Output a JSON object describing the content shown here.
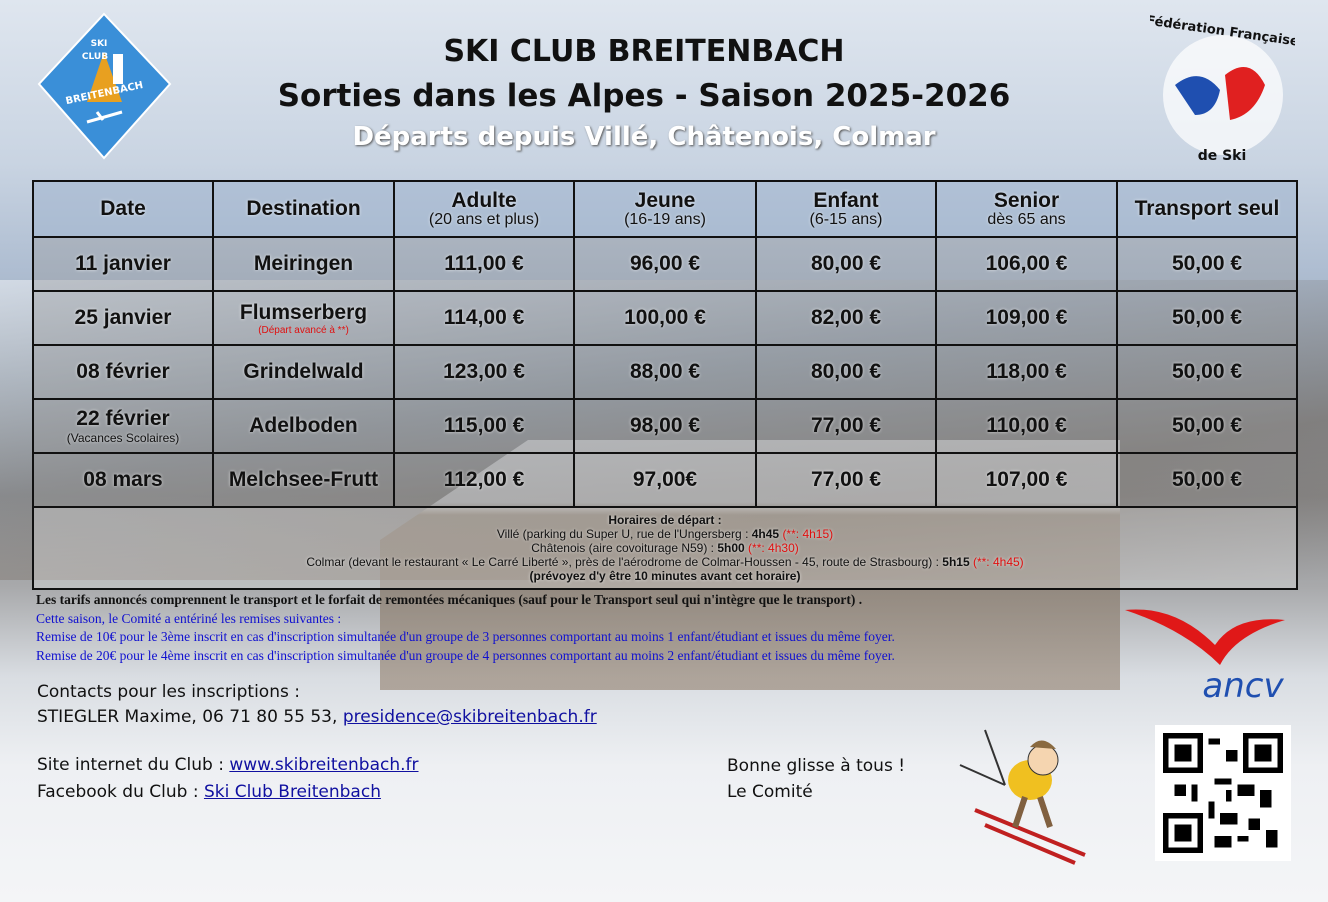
{
  "header": {
    "title": "SKI CLUB BREITENBACH",
    "subtitle": "Sorties dans les Alpes - Saison 2025-2026",
    "departures": "Départs depuis Villé, Châtenois, Colmar"
  },
  "logos": {
    "club": "SKI CLUB BREITENBACH",
    "ffs_top": "Fédération Française",
    "ffs_bottom": "de Ski",
    "ancv": "ancv"
  },
  "table": {
    "headers": [
      {
        "label": "Date"
      },
      {
        "label": "Destination"
      },
      {
        "label": "Adulte",
        "sub": "(20 ans et plus)"
      },
      {
        "label": "Jeune",
        "sub": "(16-19 ans)"
      },
      {
        "label": "Enfant",
        "sub": "(6-15 ans)"
      },
      {
        "label": "Senior",
        "sub": "dès 65 ans"
      },
      {
        "label": "Transport seul"
      }
    ],
    "rows": [
      {
        "date": "11 janvier",
        "destination": "Meiringen",
        "adulte": "111,00 €",
        "jeune": "96,00 €",
        "enfant": "80,00 €",
        "senior": "106,00 €",
        "transport": "50,00 €"
      },
      {
        "date": "25 janvier",
        "destination": "Flumserberg",
        "dest_note": "(Départ avancé à **)",
        "adulte": "114,00 €",
        "jeune": "100,00 €",
        "enfant": "82,00 €",
        "senior": "109,00 €",
        "transport": "50,00 €"
      },
      {
        "date": "08 février",
        "destination": "Grindelwald",
        "adulte": "123,00 €",
        "jeune": "88,00 €",
        "enfant": "80,00 €",
        "senior": "118,00 €",
        "transport": "50,00 €"
      },
      {
        "date": "22 février",
        "date_note": "(Vacances Scolaires)",
        "destination": "Adelboden",
        "adulte": "115,00 €",
        "jeune": "98,00 €",
        "enfant": "77,00 €",
        "senior": "110,00 €",
        "transport": "50,00 €"
      },
      {
        "date": "08 mars",
        "destination": "Melchsee-Frutt",
        "adulte": "112,00 €",
        "jeune": "97,00€",
        "enfant": "77,00 €",
        "senior": "107,00 €",
        "transport": "50,00 €"
      }
    ],
    "schedule": {
      "title": "Horaires de départ :",
      "ville": "Villé (parking du Super U, rue de l'Ungersberg : ",
      "ville_time": "4h45",
      "ville_alt": "(**: 4h15)",
      "chatenois": "Châtenois (aire covoiturage N59) : ",
      "chatenois_time": "5h00",
      "chatenois_alt": "(**: 4h30)",
      "colmar": "Colmar (devant le restaurant « Le Carré Liberté », près de l'aérodrome de Colmar-Houssen - 45, route de Strasbourg) : ",
      "colmar_time": "5h15",
      "colmar_alt": "(**: 4h45)",
      "note": "(prévoyez d'y être 10 minutes avant cet horaire)"
    }
  },
  "notes": {
    "tarifs": "Les tarifs annoncés comprennent le transport et le forfait de remontées mécaniques (sauf pour le Transport seul qui n'intègre que le transport) .",
    "remises_intro": "Cette saison, le Comité a entériné les remises suivantes :",
    "remise1": "Remise de 10€ pour le 3ème inscrit en cas d'inscription simultanée d'un groupe de 3 personnes comportant au moins 1 enfant/étudiant et issues du même foyer.",
    "remise2": "Remise de 20€ pour le 4ème inscrit en cas d'inscription simultanée d'un groupe de 4 personnes comportant au moins 2 enfant/étudiant et issues du même foyer."
  },
  "contacts": {
    "label": "Contacts pour les inscriptions :",
    "person": "STIEGLER Maxime, 06 71 80 55 53, ",
    "email": "presidence@skibreitenbach.fr",
    "site_label": "Site internet du Club : ",
    "site": "www.skibreitenbach.fr",
    "fb_label": "Facebook du Club : ",
    "fb": "Ski Club Breitenbach"
  },
  "closing": {
    "line1": "Bonne glisse à tous !",
    "line2": "Le Comité"
  }
}
